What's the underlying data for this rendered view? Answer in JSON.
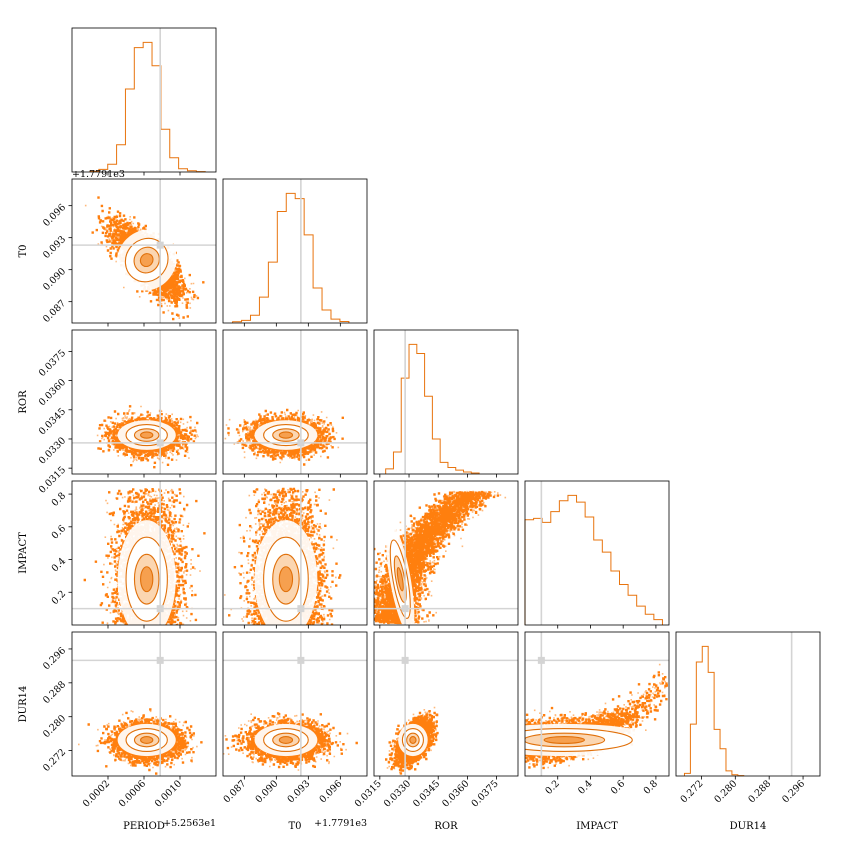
{
  "colors": {
    "scatter": "#ff7f0e",
    "contour": "#e0700a",
    "fill_light": "#ffffff",
    "fill_mid": "#fbd2a8",
    "fill_dark": "#f59a45",
    "truth": "#d4d4d4",
    "hist": "#e8740e"
  },
  "chart_data": {
    "type": "scatter",
    "subtype": "corner-plot",
    "parameters": [
      {
        "name": "PERIOD",
        "label": "PERIOD",
        "offset_label": "+5.2563e1",
        "range": [
          -0.0002,
          0.0014
        ],
        "ticks": [
          0.0002,
          0.0006,
          0.001
        ],
        "tick_labels": [
          "0.0002",
          "0.0006",
          "0.0010"
        ],
        "truth": 0.00078,
        "mean": 0.00063,
        "sd": 0.00017,
        "hist": [
          0.005,
          0.02,
          0.06,
          0.21,
          0.64,
          0.96,
          1.0,
          0.82,
          0.33,
          0.11,
          0.025,
          0.01,
          0.003
        ]
      },
      {
        "name": "T0",
        "label": "T0",
        "offset_label": "+1.7791e3",
        "range": [
          0.085,
          0.0985
        ],
        "ticks": [
          0.087,
          0.09,
          0.093,
          0.096
        ],
        "tick_labels": [
          "0.087",
          "0.090",
          "0.093",
          "0.096"
        ],
        "truth": 0.0923,
        "mean": 0.0909,
        "sd": 0.00155,
        "hist": [
          0.01,
          0.02,
          0.06,
          0.2,
          0.47,
          0.86,
          1.0,
          0.96,
          0.68,
          0.27,
          0.1,
          0.03,
          0.012
        ]
      },
      {
        "name": "ROR",
        "label": "ROR",
        "offset_label": "",
        "range": [
          0.0312,
          0.0386
        ],
        "ticks": [
          0.0315,
          0.033,
          0.0345,
          0.036,
          0.0375
        ],
        "tick_labels": [
          "0.0315",
          "0.0330",
          "0.0345",
          "0.0360",
          "0.0375"
        ],
        "truth": 0.0328,
        "mean": 0.0332,
        "sd": 0.0004,
        "hist": [
          0.04,
          0.17,
          0.74,
          1.0,
          0.93,
          0.6,
          0.27,
          0.09,
          0.05,
          0.03,
          0.015,
          0.008
        ]
      },
      {
        "name": "IMPACT",
        "label": "IMPACT",
        "offset_label": "",
        "range": [
          0.0,
          0.88
        ],
        "ticks": [
          0.2,
          0.4,
          0.6,
          0.8
        ],
        "tick_labels": [
          "0.2",
          "0.4",
          "0.6",
          "0.8"
        ],
        "truth": 0.1,
        "mean": 0.28,
        "sd": 0.18,
        "hist": [
          0.78,
          0.79,
          0.76,
          0.84,
          0.92,
          0.96,
          0.91,
          0.8,
          0.63,
          0.54,
          0.4,
          0.3,
          0.22,
          0.14,
          0.08,
          0.04
        ]
      },
      {
        "name": "DUR14",
        "label": "DUR14",
        "offset_label": "",
        "range": [
          0.266,
          0.3
        ],
        "ticks": [
          0.272,
          0.28,
          0.288,
          0.296
        ],
        "tick_labels": [
          "0.272",
          "0.280",
          "0.288",
          "0.296"
        ],
        "truth": 0.2933,
        "mean": 0.2745,
        "sd": 0.002,
        "hist": [
          0.02,
          0.4,
          0.88,
          1.0,
          0.8,
          0.36,
          0.21,
          0.04,
          0.01,
          0.003
        ]
      }
    ],
    "pairs": [
      {
        "row": "T0",
        "col": "PERIOD",
        "correlation": -0.75
      },
      {
        "row": "ROR",
        "col": "PERIOD",
        "correlation": 0.0
      },
      {
        "row": "ROR",
        "col": "T0",
        "correlation": 0.0
      },
      {
        "row": "IMPACT",
        "col": "PERIOD",
        "correlation": 0.0
      },
      {
        "row": "IMPACT",
        "col": "T0",
        "correlation": 0.0
      },
      {
        "row": "IMPACT",
        "col": "ROR",
        "correlation": 0.85
      },
      {
        "row": "DUR14",
        "col": "PERIOD",
        "correlation": 0.0
      },
      {
        "row": "DUR14",
        "col": "T0",
        "correlation": 0.0
      },
      {
        "row": "DUR14",
        "col": "ROR",
        "correlation": 0.55
      },
      {
        "row": "DUR14",
        "col": "IMPACT",
        "correlation": 0.5
      }
    ]
  }
}
